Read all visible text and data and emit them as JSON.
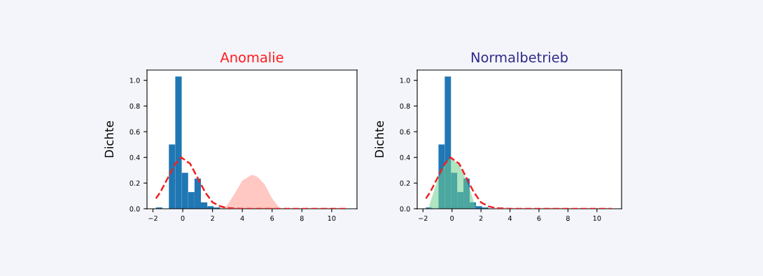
{
  "chart_data": [
    {
      "type": "histogram",
      "title": "Anomalie",
      "ylabel": "Dichte",
      "bins": [
        -1.8,
        -1.37,
        -0.93,
        -0.5,
        -0.07,
        0.36,
        0.79,
        1.22,
        1.65,
        2.08,
        2.51
      ],
      "series": [
        {
          "color": "#1f77b4",
          "values": [
            0.01,
            0,
            0.5,
            1.03,
            0.28,
            0.13,
            0.235,
            0.05,
            0.02,
            0.01
          ]
        },
        {
          "type": "area",
          "color": "#ff9a8f",
          "x": [
            2.7,
            3.0,
            3.5,
            4.0,
            4.65,
            5.0,
            5.5,
            6.0,
            6.5,
            6.6
          ],
          "values": [
            0,
            0.03,
            0.12,
            0.22,
            0.265,
            0.25,
            0.19,
            0.08,
            0.005,
            0
          ]
        },
        {
          "type": "line",
          "color": "#ee2222",
          "line_style": "dashed",
          "x": [
            -1.8,
            -1.5,
            -1.0,
            -0.5,
            -0.1,
            0.5,
            1.0,
            1.5,
            2.0,
            2.5,
            3.0,
            4.0,
            11.0
          ],
          "values": [
            0.08,
            0.13,
            0.24,
            0.35,
            0.4,
            0.35,
            0.24,
            0.13,
            0.05,
            0.02,
            0.005,
            0,
            0
          ]
        }
      ],
      "xlim": [
        -2.4,
        11.7
      ],
      "ylim": [
        0,
        1.08
      ],
      "xticks": [
        {
          "value": -2,
          "label": "−2"
        },
        0,
        2,
        4,
        6,
        8,
        10
      ],
      "yticks": [
        {
          "value": 0,
          "label": "0.0"
        },
        {
          "value": 0.2,
          "label": "0.2"
        },
        {
          "value": 0.4,
          "label": "0.4"
        },
        {
          "value": 0.6,
          "label": "0.6"
        },
        {
          "value": 0.8,
          "label": "0.8"
        },
        {
          "value": 1.0,
          "label": "1.0"
        }
      ],
      "grid": false,
      "legend": false
    },
    {
      "type": "histogram",
      "title": "Normalbetrieb",
      "ylabel": "Dichte",
      "bins": [
        -1.8,
        -1.37,
        -0.93,
        -0.5,
        -0.07,
        0.36,
        0.79,
        1.22,
        1.65,
        2.08,
        2.51
      ],
      "series": [
        {
          "color": "#1f77b4",
          "values": [
            0.01,
            0,
            0.5,
            1.03,
            0.28,
            0.13,
            0.235,
            0.05,
            0.02,
            0.01
          ]
        },
        {
          "type": "area",
          "color": "#6fcf8f",
          "x": [
            -1.62,
            -1.5,
            -1.0,
            -0.5,
            -0.1,
            0.5,
            1.0,
            1.3,
            1.6,
            1.62
          ],
          "values": [
            0,
            0.05,
            0.22,
            0.35,
            0.4,
            0.34,
            0.22,
            0.13,
            0.02,
            0
          ]
        },
        {
          "type": "line",
          "color": "#ee2222",
          "line_style": "dashed",
          "x": [
            -1.8,
            -1.5,
            -1.0,
            -0.5,
            -0.1,
            0.5,
            1.0,
            1.5,
            2.0,
            2.5,
            3.0,
            4.0,
            11.0
          ],
          "values": [
            0.08,
            0.13,
            0.24,
            0.35,
            0.4,
            0.35,
            0.24,
            0.13,
            0.05,
            0.02,
            0.005,
            0,
            0
          ]
        }
      ],
      "xlim": [
        -2.4,
        11.7
      ],
      "ylim": [
        0,
        1.08
      ],
      "xticks": [
        {
          "value": -2,
          "label": "−2"
        },
        0,
        2,
        4,
        6,
        8,
        10
      ],
      "yticks": [
        {
          "value": 0,
          "label": "0.0"
        },
        {
          "value": 0.2,
          "label": "0.2"
        },
        {
          "value": 0.4,
          "label": "0.4"
        },
        {
          "value": 0.6,
          "label": "0.6"
        },
        {
          "value": 0.8,
          "label": "0.8"
        },
        {
          "value": 1.0,
          "label": "1.0"
        }
      ],
      "grid": false,
      "legend": false
    }
  ]
}
